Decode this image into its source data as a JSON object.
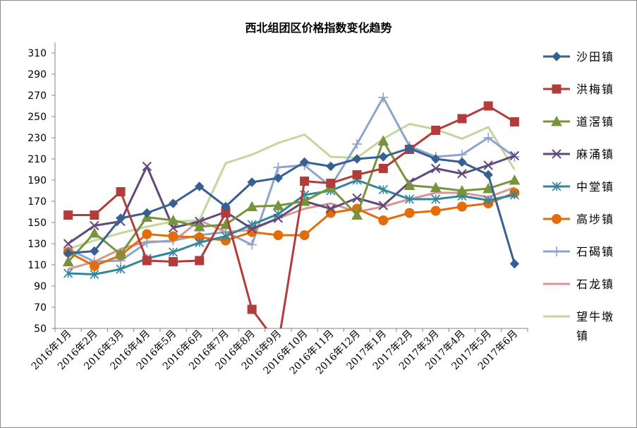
{
  "chart_data": {
    "type": "line",
    "title": "西北组团区价格指数变化趋势",
    "xlabel": "",
    "ylabel": "",
    "ylim": [
      50,
      310
    ],
    "yticks": [
      50,
      70,
      90,
      110,
      130,
      150,
      170,
      190,
      210,
      230,
      250,
      270,
      290,
      310
    ],
    "grid": false,
    "legend_position": "right",
    "categories": [
      "2016年1月",
      "2016年2月",
      "2016年3月",
      "2016年4月",
      "2016年5月",
      "2016年6月",
      "2016年7月",
      "2016年8月",
      "2016年9月",
      "2016年10月",
      "2016年11月",
      "2016年12月",
      "2017年1月",
      "2017年2月",
      "2017年3月",
      "2017年4月",
      "2017年5月",
      "2017年6月"
    ],
    "series": [
      {
        "name": "沙田镇",
        "color": "#376092",
        "marker": "diamond",
        "values": [
          121,
          123,
          154,
          159,
          168,
          184,
          165,
          188,
          192,
          207,
          203,
          210,
          212,
          220,
          210,
          207,
          195,
          111
        ]
      },
      {
        "name": "洪梅镇",
        "color": "#b23c3a",
        "marker": "square",
        "values": [
          157,
          157,
          179,
          114,
          113,
          114,
          159,
          68,
          35,
          189,
          187,
          195,
          201,
          219,
          237,
          248,
          260,
          245
        ]
      },
      {
        "name": "道滘镇",
        "color": "#77933c",
        "marker": "triangle",
        "values": [
          113,
          140,
          120,
          155,
          152,
          146,
          148,
          165,
          166,
          170,
          183,
          157,
          227,
          185,
          183,
          180,
          182,
          190
        ]
      },
      {
        "name": "麻涌镇",
        "color": "#604a7b",
        "marker": "x",
        "values": [
          130,
          147,
          151,
          203,
          145,
          151,
          160,
          144,
          154,
          170,
          163,
          173,
          166,
          188,
          201,
          196,
          204,
          213
        ]
      },
      {
        "name": "中堂镇",
        "color": "#31859c",
        "marker": "star",
        "values": [
          102,
          101,
          106,
          116,
          122,
          131,
          137,
          148,
          158,
          176,
          180,
          190,
          181,
          172,
          172,
          175,
          171,
          176
        ]
      },
      {
        "name": "高埗镇",
        "color": "#e46c0a",
        "marker": "circle",
        "values": [
          122,
          109,
          119,
          139,
          137,
          136,
          133,
          141,
          138,
          138,
          159,
          163,
          152,
          159,
          161,
          165,
          168,
          178
        ]
      },
      {
        "name": "石碣镇",
        "color": "#8ea5cb",
        "marker": "plus",
        "values": [
          125,
          113,
          114,
          131,
          133,
          138,
          141,
          129,
          202,
          204,
          184,
          224,
          268,
          222,
          212,
          214,
          230,
          212
        ]
      },
      {
        "name": "石龙镇",
        "color": "#d99694",
        "marker": "none",
        "values": [
          106,
          113,
          125,
          132,
          132,
          152,
          141,
          143,
          154,
          163,
          168,
          160,
          165,
          172,
          178,
          178,
          174,
          183
        ]
      },
      {
        "name": "望牛墩镇",
        "color": "#c3d69b",
        "marker": "none",
        "values": [
          125,
          133,
          140,
          146,
          151,
          152,
          206,
          214,
          225,
          233,
          212,
          211,
          229,
          243,
          238,
          229,
          240,
          200
        ]
      }
    ]
  }
}
